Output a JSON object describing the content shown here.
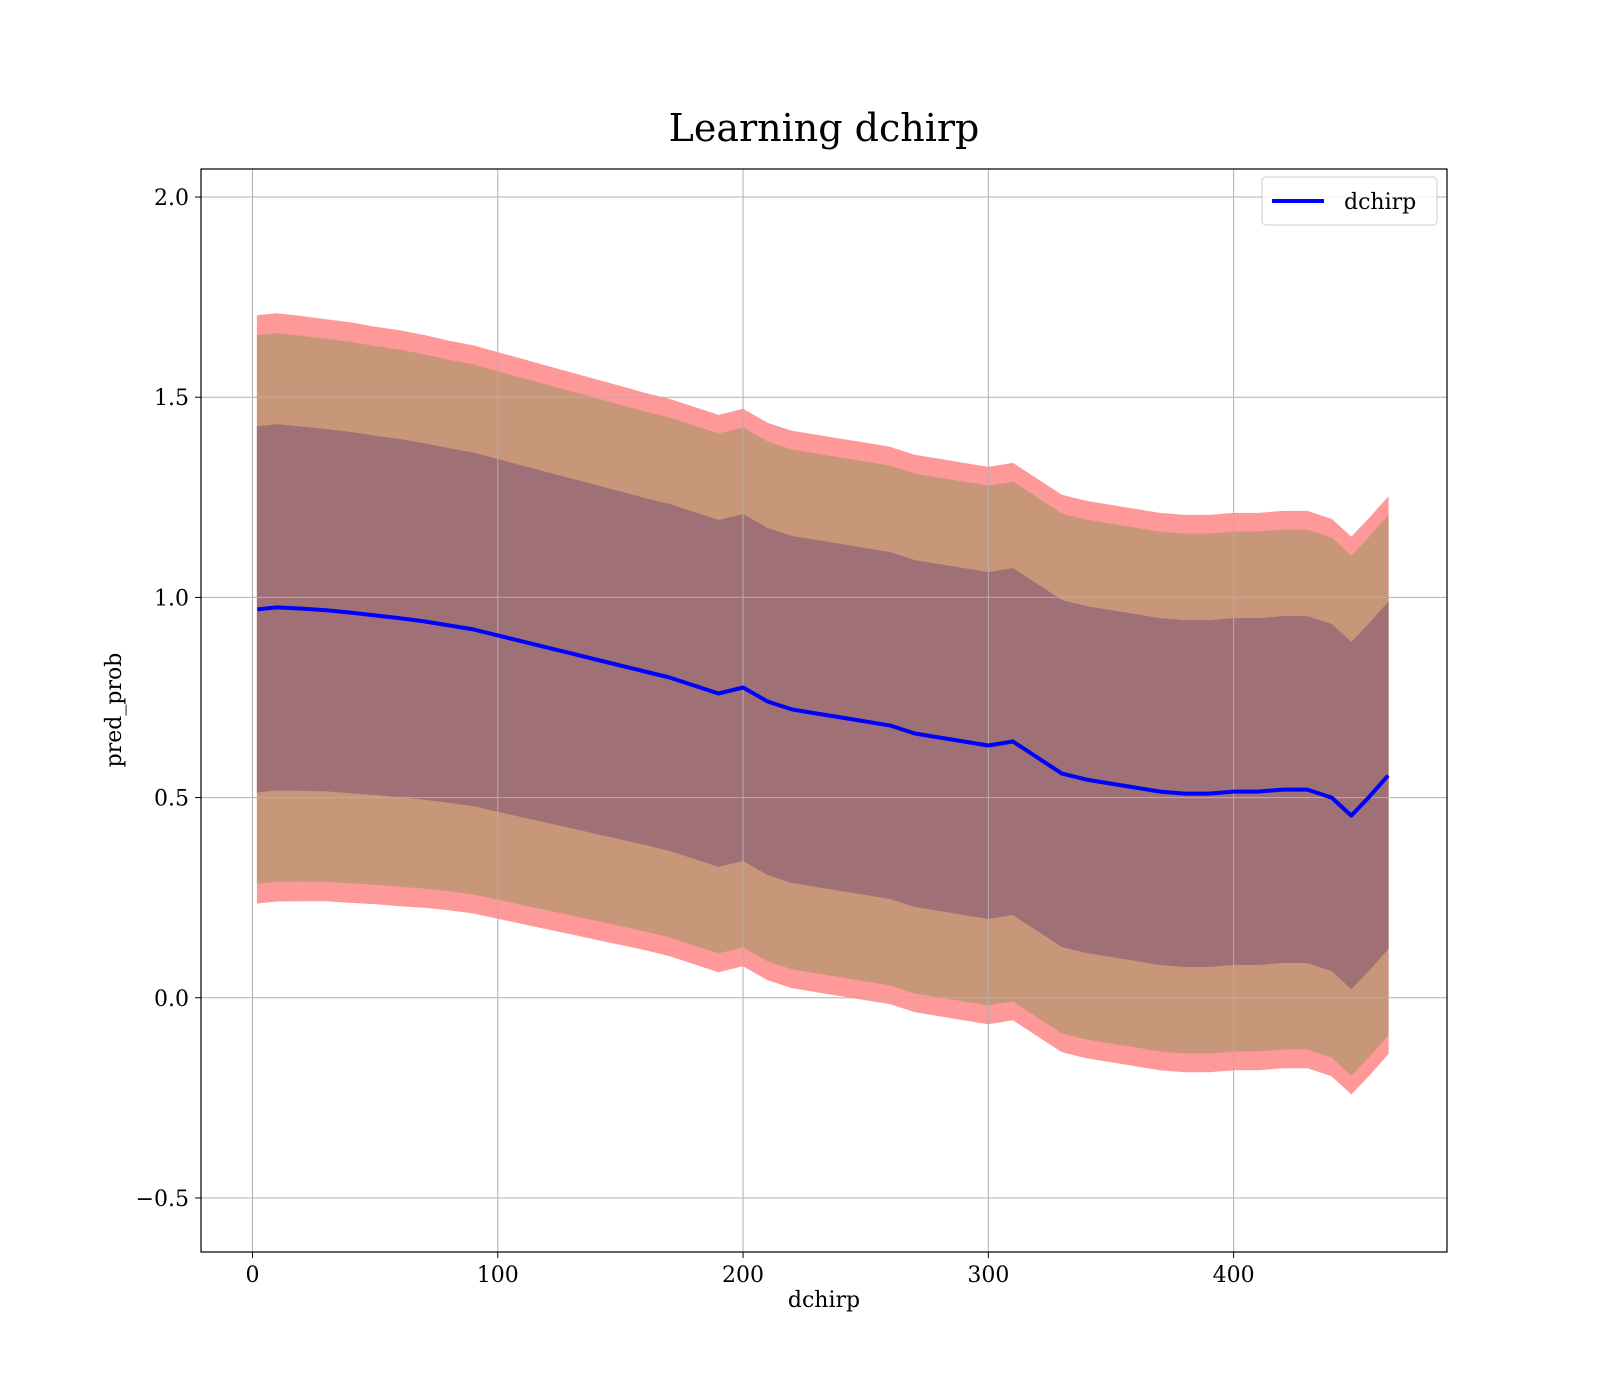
{
  "chart_data": {
    "type": "line",
    "title": "Learning dchirp",
    "xlabel": "dchirp",
    "ylabel": "pred_prob",
    "xlim": [
      -21,
      487
    ],
    "ylim": [
      -0.635,
      2.07
    ],
    "xticks": [
      0,
      100,
      200,
      300,
      400
    ],
    "yticks": [
      -0.5,
      0.0,
      0.5,
      1.0,
      1.5,
      2.0
    ],
    "xtick_labels": [
      "0",
      "100",
      "200",
      "300",
      "400"
    ],
    "ytick_labels": [
      "−0.5",
      "0.0",
      "0.5",
      "1.0",
      "1.5",
      "2.0"
    ],
    "grid": true,
    "legend": {
      "position": "top-right",
      "entries": [
        {
          "label": "dchirp",
          "color": "#0000ff"
        }
      ]
    },
    "colors": {
      "line": "#0000ff",
      "band3": "#ff9999",
      "band2": "#c8977a",
      "band1": "#a07077",
      "grid": "#b0b0b0"
    },
    "bands": [
      {
        "name": "3 sigma",
        "sigma_multiplier": 1.93
      },
      {
        "name": "2 sigma",
        "sigma_multiplier": 1.8
      },
      {
        "name": "1 sigma",
        "sigma_multiplier": 1.2
      }
    ],
    "series": [
      {
        "name": "dchirp",
        "x": [
          2,
          10,
          20,
          30,
          40,
          50,
          60,
          70,
          80,
          90,
          100,
          110,
          120,
          130,
          140,
          150,
          160,
          170,
          180,
          190,
          200,
          210,
          220,
          230,
          240,
          250,
          260,
          270,
          280,
          290,
          300,
          310,
          320,
          330,
          340,
          350,
          360,
          370,
          380,
          390,
          400,
          410,
          420,
          430,
          440,
          448,
          455,
          463
        ],
        "y": [
          0.97,
          0.975,
          0.972,
          0.968,
          0.962,
          0.955,
          0.948,
          0.94,
          0.93,
          0.92,
          0.905,
          0.89,
          0.875,
          0.86,
          0.845,
          0.83,
          0.815,
          0.8,
          0.78,
          0.76,
          0.775,
          0.74,
          0.72,
          0.71,
          0.7,
          0.69,
          0.68,
          0.66,
          0.65,
          0.64,
          0.63,
          0.64,
          0.6,
          0.56,
          0.545,
          0.535,
          0.525,
          0.515,
          0.51,
          0.51,
          0.515,
          0.515,
          0.52,
          0.52,
          0.5,
          0.455,
          0.5,
          0.555
        ],
        "sigma": [
          0.38,
          0.38,
          0.378,
          0.376,
          0.375,
          0.373,
          0.372,
          0.37,
          0.368,
          0.367,
          0.366,
          0.365,
          0.364,
          0.363,
          0.362,
          0.361,
          0.36,
          0.36,
          0.36,
          0.36,
          0.36,
          0.36,
          0.36,
          0.36,
          0.36,
          0.36,
          0.36,
          0.36,
          0.36,
          0.36,
          0.36,
          0.36,
          0.36,
          0.36,
          0.36,
          0.36,
          0.36,
          0.36,
          0.36,
          0.36,
          0.36,
          0.36,
          0.36,
          0.36,
          0.36,
          0.36,
          0.36,
          0.36
        ]
      }
    ]
  }
}
